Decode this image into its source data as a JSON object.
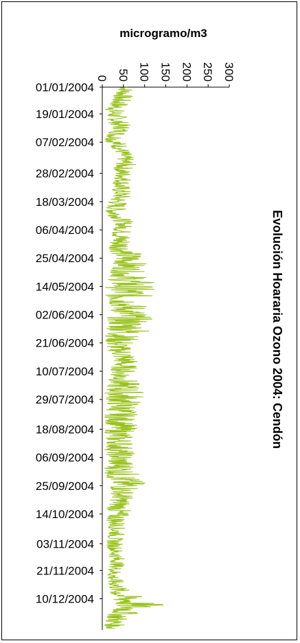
{
  "chart_data": {
    "type": "line",
    "title": "Evolución Hoararia Ozono 2004: Cendón",
    "ylabel": "microgramo/m3",
    "xlabel": "",
    "ylim": [
      0,
      300
    ],
    "yticks": [
      "0",
      "50",
      "100",
      "150",
      "200",
      "250",
      "300"
    ],
    "xticks": [
      "01/01/2004",
      "19/01/2004",
      "07/02/2004",
      "28/02/2004",
      "18/03/2004",
      "06/04/2004",
      "25/04/2004",
      "14/05/2004",
      "02/06/2004",
      "21/06/2004",
      "10/07/2004",
      "29/07/2004",
      "18/08/2004",
      "06/09/2004",
      "25/09/2004",
      "14/10/2004",
      "03/11/2004",
      "21/11/2004",
      "10/12/2004"
    ],
    "x_range": [
      "01/01/2004",
      "31/12/2004"
    ],
    "grid": false,
    "legend": "none",
    "orientation": "rotated-90-clockwise",
    "series": [
      {
        "color": "#99c21c",
        "x": [
          "01/01/2004",
          "05/01/2004",
          "09/01/2004",
          "13/01/2004",
          "17/01/2004",
          "21/01/2004",
          "25/01/2004",
          "29/01/2004",
          "02/02/2004",
          "06/02/2004",
          "10/02/2004",
          "14/02/2004",
          "18/02/2004",
          "22/02/2004",
          "26/02/2004",
          "01/03/2004",
          "05/03/2004",
          "09/03/2004",
          "13/03/2004",
          "17/03/2004",
          "21/03/2004",
          "25/03/2004",
          "29/03/2004",
          "02/04/2004",
          "06/04/2004",
          "10/04/2004",
          "14/04/2004",
          "18/04/2004",
          "22/04/2004",
          "26/04/2004",
          "30/04/2004",
          "04/05/2004",
          "08/05/2004",
          "12/05/2004",
          "16/05/2004",
          "20/05/2004",
          "24/05/2004",
          "28/05/2004",
          "01/06/2004",
          "05/06/2004",
          "09/06/2004",
          "13/06/2004",
          "17/06/2004",
          "21/06/2004",
          "25/06/2004",
          "29/06/2004",
          "03/07/2004",
          "07/07/2004",
          "11/07/2004",
          "15/07/2004",
          "19/07/2004",
          "23/07/2004",
          "27/07/2004",
          "31/07/2004",
          "04/08/2004",
          "08/08/2004",
          "12/08/2004",
          "16/08/2004",
          "20/08/2004",
          "24/08/2004",
          "28/08/2004",
          "01/09/2004",
          "05/09/2004",
          "09/09/2004",
          "13/09/2004",
          "17/09/2004",
          "21/09/2004",
          "25/09/2004",
          "29/09/2004",
          "03/10/2004",
          "07/10/2004",
          "11/10/2004",
          "15/10/2004",
          "19/10/2004",
          "23/10/2004",
          "27/10/2004",
          "31/10/2004",
          "04/11/2004",
          "08/11/2004",
          "12/11/2004",
          "16/11/2004",
          "20/11/2004",
          "24/11/2004",
          "28/11/2004",
          "02/12/2004",
          "06/12/2004",
          "10/12/2004",
          "14/12/2004",
          "18/12/2004",
          "22/12/2004",
          "26/12/2004",
          "30/12/2004"
        ],
        "y_low": [
          40,
          30,
          20,
          15,
          5,
          10,
          15,
          25,
          10,
          5,
          20,
          30,
          35,
          30,
          25,
          30,
          25,
          20,
          25,
          15,
          10,
          5,
          20,
          30,
          25,
          20,
          15,
          15,
          20,
          25,
          25,
          20,
          15,
          10,
          5,
          5,
          10,
          20,
          15,
          10,
          10,
          10,
          5,
          5,
          10,
          20,
          25,
          20,
          20,
          15,
          10,
          5,
          5,
          10,
          10,
          5,
          5,
          10,
          5,
          5,
          10,
          5,
          10,
          10,
          5,
          5,
          10,
          15,
          20,
          20,
          15,
          10,
          10,
          10,
          15,
          15,
          10,
          10,
          15,
          15,
          20,
          15,
          10,
          10,
          15,
          15,
          20,
          25,
          20,
          10,
          5,
          5
        ],
        "y_high": [
          80,
          75,
          70,
          65,
          55,
          60,
          65,
          70,
          60,
          55,
          65,
          70,
          75,
          80,
          70,
          75,
          72,
          68,
          70,
          65,
          60,
          55,
          68,
          75,
          70,
          72,
          75,
          80,
          95,
          110,
          105,
          100,
          110,
          130,
          125,
          120,
          115,
          110,
          115,
          120,
          110,
          125,
          90,
          80,
          70,
          85,
          90,
          85,
          80,
          85,
          90,
          100,
          105,
          95,
          90,
          85,
          80,
          85,
          80,
          75,
          80,
          75,
          80,
          75,
          85,
          90,
          95,
          110,
          80,
          75,
          70,
          70,
          65,
          60,
          55,
          55,
          50,
          50,
          50,
          55,
          55,
          50,
          45,
          50,
          60,
          70,
          110,
          150,
          100,
          70,
          55,
          50
        ]
      }
    ]
  }
}
